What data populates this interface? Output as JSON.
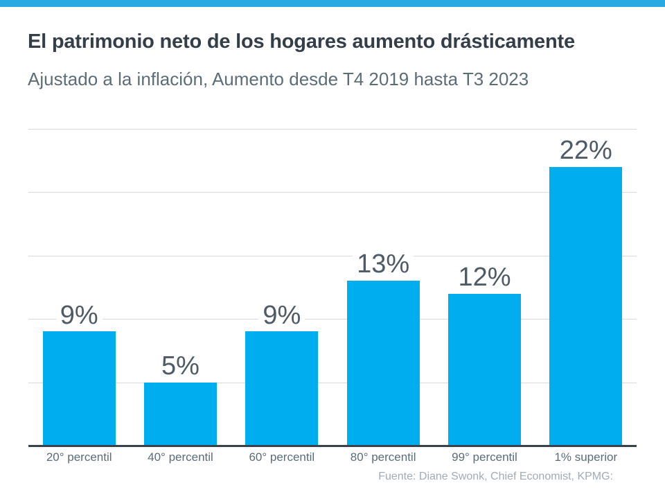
{
  "banner": {
    "color": "#29ABE2"
  },
  "header": {
    "title": "El patrimonio neto de los hogares aumento drásticamente",
    "subtitle": "Ajustado a la inflación, Aumento desde T4 2019 hasta T3 2023"
  },
  "chart_data": {
    "type": "bar",
    "categories": [
      "20° percentil",
      "40° percentil",
      "60° percentil",
      "80° percentil",
      "99° percentil",
      "1% superior"
    ],
    "values": [
      9,
      5,
      9,
      13,
      12,
      22
    ],
    "value_labels": [
      "9%",
      "5%",
      "9%",
      "13%",
      "12%",
      "22%"
    ],
    "title": "El patrimonio neto de los hogares aumento drásticamente",
    "subtitle": "Ajustado a la inflación, Aumento desde T4 2019 hasta T3 2023",
    "xlabel": "",
    "ylabel": "",
    "ylim": [
      0,
      25
    ],
    "gridline_step": 5,
    "grid": true,
    "legend": false,
    "bar_color": "#00AEEF",
    "value_label_color": "#4E5B67",
    "category_label_color": "#5B6C79",
    "gridline_color": "#D9D9D9",
    "axis_line_color": "#37424C"
  },
  "footer": {
    "source": "Fuente: Diane Swonk, Chief Economist, KPMG:"
  }
}
